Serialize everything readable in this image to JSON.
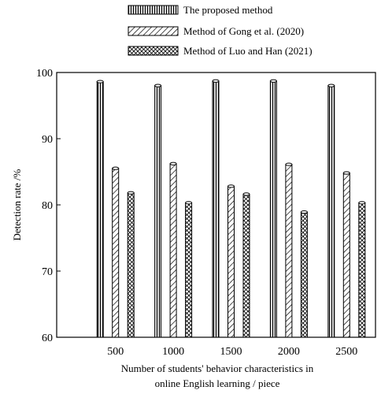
{
  "chart_data": {
    "type": "bar",
    "title": "",
    "xlabel_line1": "Number of students' behavior characteristics in",
    "xlabel_line2": "online English learning / piece",
    "ylabel": "Detection rate /%",
    "ylim": [
      60,
      100
    ],
    "yticks": [
      "60",
      "70",
      "80",
      "90",
      "100"
    ],
    "categories": [
      "500",
      "1000",
      "1500",
      "2000",
      "2500"
    ],
    "legend_position": "top",
    "series": [
      {
        "name": "The proposed  method",
        "pattern": "vertical-stripes",
        "values": [
          98.8,
          98.2,
          98.9,
          98.9,
          98.2
        ]
      },
      {
        "name": "Method of Gong et al. (2020)",
        "pattern": "diagonal-stripes",
        "values": [
          85.7,
          86.4,
          83.0,
          86.3,
          85.0
        ]
      },
      {
        "name": "Method of Luo and Han (2021)",
        "pattern": "crosshatch",
        "values": [
          82.0,
          80.5,
          81.8,
          79.1,
          80.5
        ]
      }
    ]
  }
}
